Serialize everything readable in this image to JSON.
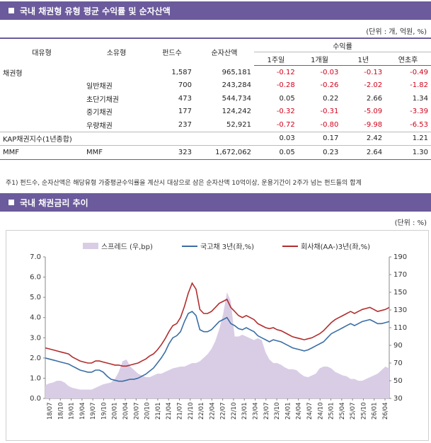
{
  "table_section": {
    "title": "국내 채권형 유형 평균 수익률 및 순자산액",
    "unit": "(단위 : 개, 억원, %)",
    "headers": {
      "type": "대유형",
      "subtype": "소유형",
      "count": "펀드수",
      "aum": "순자산액",
      "returns": "수익률",
      "r1w": "1주일",
      "r1m": "1개월",
      "r1y": "1년",
      "ytd": "연초후"
    },
    "rows": [
      {
        "type": "채권형",
        "subtype": "",
        "count": "1,587",
        "aum": "965,181",
        "r1w": "-0.12",
        "r1m": "-0.03",
        "r1y": "-0.13",
        "ytd": "-0.49"
      },
      {
        "type": "",
        "subtype": "일반채권",
        "count": "700",
        "aum": "243,284",
        "r1w": "-0.28",
        "r1m": "-0.26",
        "r1y": "-2.02",
        "ytd": "-1.82"
      },
      {
        "type": "",
        "subtype": "초단기채권",
        "count": "473",
        "aum": "544,734",
        "r1w": "0.05",
        "r1m": "0.22",
        "r1y": "2.66",
        "ytd": "1.34"
      },
      {
        "type": "",
        "subtype": "중기채권",
        "count": "177",
        "aum": "124,242",
        "r1w": "-0.32",
        "r1m": "-0.31",
        "r1y": "-5.09",
        "ytd": "-3.39"
      },
      {
        "type": "",
        "subtype": "우량채권",
        "count": "237",
        "aum": "52,921",
        "r1w": "-0.72",
        "r1m": "-0.80",
        "r1y": "-9.98",
        "ytd": "-6.53"
      },
      {
        "type": "KAP채권지수(1년종합)",
        "subtype": "",
        "count": "",
        "aum": "",
        "r1w": "0.03",
        "r1m": "0.17",
        "r1y": "2.42",
        "ytd": "1.21"
      },
      {
        "type": "MMF",
        "subtype": "MMF",
        "count": "323",
        "aum": "1,672,062",
        "r1w": "0.05",
        "r1m": "0.23",
        "r1y": "2.64",
        "ytd": "1.30"
      }
    ],
    "footnote": "주1) 펀드수, 순자산액은 해당유형 가중평균수익률을 계산시 대상으로 삼은 순자산액 10억이상, 운용기간이 2주가 넘는 펀드들의 합계"
  },
  "chart_section": {
    "title": "국내 채권금리 추이",
    "unit": "(단위 : %)"
  },
  "chart_data": {
    "type": "line",
    "x_tick_labels": [
      "18/07",
      "18/10",
      "19/01",
      "19/04",
      "19/07",
      "19/10",
      "20/01",
      "20/04",
      "20/07",
      "20/10",
      "21/01",
      "21/04",
      "21/07",
      "21/10",
      "22/01",
      "22/04",
      "22/07",
      "22/10",
      "23/01",
      "23/04",
      "23/07",
      "23/10",
      "24/01",
      "24/04",
      "24/07",
      "24/10",
      "25/01",
      "25/04",
      "25/07",
      "25/10",
      "26/01",
      "26/04"
    ],
    "y_left": {
      "min": 0,
      "max": 7,
      "ticks": [
        "0.0",
        "1.0",
        "2.0",
        "3.0",
        "4.0",
        "5.0",
        "6.0",
        "7.0"
      ]
    },
    "y_right": {
      "min": 30,
      "max": 190,
      "ticks": [
        "30",
        "50",
        "70",
        "90",
        "110",
        "130",
        "150",
        "170",
        "190"
      ]
    },
    "legend_position": "top",
    "series": [
      {
        "name": "스프레드 (우,bp)",
        "kind": "area",
        "axis": "right",
        "color": "#d9cde6",
        "values": [
          45,
          47,
          48,
          50,
          50,
          48,
          44,
          42,
          41,
          40,
          40,
          40,
          40,
          42,
          44,
          46,
          47,
          48,
          52,
          60,
          72,
          74,
          66,
          62,
          58,
          56,
          54,
          54,
          56,
          58,
          58,
          60,
          62,
          64,
          65,
          66,
          66,
          68,
          70,
          70,
          72,
          76,
          80,
          86,
          95,
          108,
          125,
          150,
          140,
          100,
          100,
          102,
          100,
          98,
          96,
          98,
          96,
          82,
          74,
          70,
          70,
          68,
          65,
          63,
          63,
          62,
          58,
          55,
          54,
          56,
          58,
          64,
          66,
          66,
          64,
          60,
          58,
          56,
          55,
          52,
          52,
          50,
          50,
          52,
          54,
          56,
          58,
          62,
          66,
          64
        ]
      },
      {
        "name": "국고채 3년(좌,%)",
        "kind": "line",
        "axis": "left",
        "color": "#3a6ea5",
        "values": [
          2.0,
          1.95,
          1.9,
          1.85,
          1.8,
          1.75,
          1.7,
          1.6,
          1.5,
          1.4,
          1.35,
          1.3,
          1.3,
          1.4,
          1.4,
          1.3,
          1.1,
          0.95,
          0.9,
          0.85,
          0.85,
          0.9,
          0.95,
          0.95,
          1.0,
          1.1,
          1.2,
          1.35,
          1.5,
          1.75,
          2.0,
          2.3,
          2.7,
          3.0,
          3.1,
          3.3,
          3.8,
          4.2,
          4.3,
          4.1,
          3.4,
          3.3,
          3.3,
          3.4,
          3.6,
          3.8,
          3.9,
          4.0,
          3.7,
          3.6,
          3.45,
          3.4,
          3.5,
          3.4,
          3.3,
          3.1,
          3.0,
          2.9,
          2.8,
          2.9,
          2.85,
          2.8,
          2.7,
          2.6,
          2.5,
          2.45,
          2.4,
          2.35,
          2.4,
          2.5,
          2.6,
          2.7,
          2.8,
          3.0,
          3.2,
          3.3,
          3.4,
          3.5,
          3.6,
          3.7,
          3.6,
          3.7,
          3.8,
          3.85,
          3.9,
          3.8,
          3.7,
          3.7,
          3.75,
          3.8
        ]
      },
      {
        "name": "회사채(AA-)3년(좌,%)",
        "kind": "line",
        "axis": "left",
        "color": "#b22d2d",
        "values": [
          2.5,
          2.45,
          2.4,
          2.35,
          2.3,
          2.25,
          2.2,
          2.05,
          1.95,
          1.85,
          1.8,
          1.75,
          1.75,
          1.85,
          1.85,
          1.8,
          1.75,
          1.7,
          1.65,
          1.65,
          1.6,
          1.6,
          1.65,
          1.7,
          1.75,
          1.85,
          1.95,
          2.1,
          2.2,
          2.4,
          2.65,
          2.95,
          3.3,
          3.6,
          3.7,
          4.0,
          4.55,
          5.2,
          5.7,
          5.4,
          4.4,
          4.2,
          4.2,
          4.3,
          4.5,
          4.7,
          4.8,
          4.9,
          4.5,
          4.3,
          4.1,
          4.0,
          4.1,
          4.0,
          3.9,
          3.7,
          3.6,
          3.5,
          3.45,
          3.5,
          3.4,
          3.35,
          3.25,
          3.15,
          3.05,
          3.0,
          2.95,
          2.9,
          2.95,
          3.0,
          3.1,
          3.2,
          3.35,
          3.55,
          3.75,
          3.9,
          4.0,
          4.1,
          4.2,
          4.3,
          4.2,
          4.3,
          4.4,
          4.45,
          4.5,
          4.4,
          4.3,
          4.35,
          4.4,
          4.5
        ]
      }
    ]
  }
}
